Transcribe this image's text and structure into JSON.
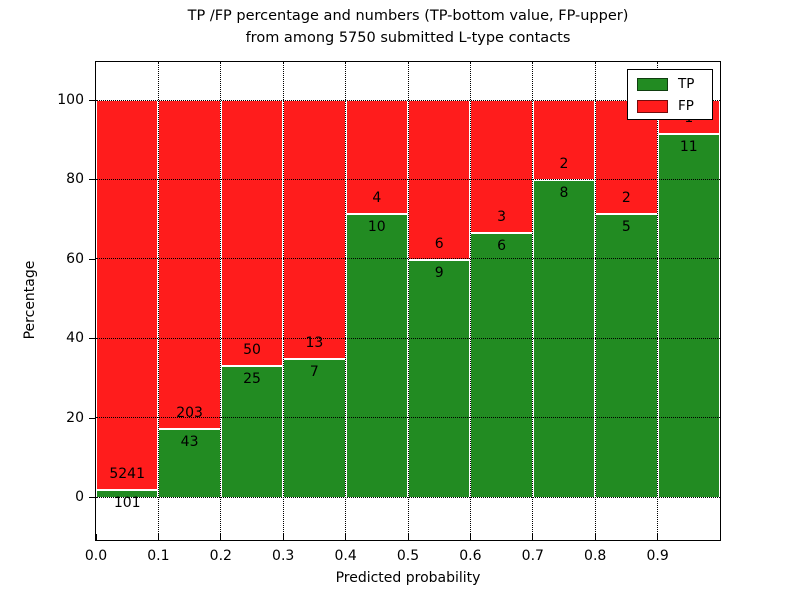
{
  "title": {
    "line1": "TP /FP percentage and numbers (TP-bottom value, FP-upper)",
    "line2": "from among 5750 submitted L-type contacts"
  },
  "chart_data": {
    "type": "bar",
    "stacked": true,
    "normalized_to_percent": true,
    "total_contacts": 5750,
    "bins_start": [
      0.0,
      0.1,
      0.2,
      0.3,
      0.4,
      0.5,
      0.6,
      0.7,
      0.8,
      0.9
    ],
    "bin_width": 0.1,
    "series": [
      {
        "name": "TP",
        "color": "#228B22",
        "values": [
          101,
          43,
          25,
          7,
          10,
          9,
          6,
          8,
          5,
          11
        ]
      },
      {
        "name": "FP",
        "color": "#ff1c1c",
        "values": [
          5241,
          203,
          50,
          13,
          4,
          6,
          3,
          2,
          2,
          1
        ]
      }
    ],
    "tp_percent": [
      1.89,
      17.48,
      33.33,
      35.0,
      71.43,
      60.0,
      66.67,
      80.0,
      71.43,
      91.67
    ],
    "xlabel": "Predicted probability",
    "ylabel": "Percentage",
    "xticks": [
      "0.0",
      "0.1",
      "0.2",
      "0.3",
      "0.4",
      "0.5",
      "0.6",
      "0.7",
      "0.8",
      "0.9"
    ],
    "yticks": [
      0,
      20,
      40,
      60,
      80,
      100
    ],
    "xlim": [
      0.0,
      1.0
    ],
    "ylim": [
      -11,
      110
    ],
    "grid": true,
    "grid_style": "dotted",
    "legend": {
      "position": "upper right",
      "entries": [
        {
          "label": "TP",
          "color": "#228B22"
        },
        {
          "label": "FP",
          "color": "#ff1c1c"
        }
      ]
    }
  }
}
